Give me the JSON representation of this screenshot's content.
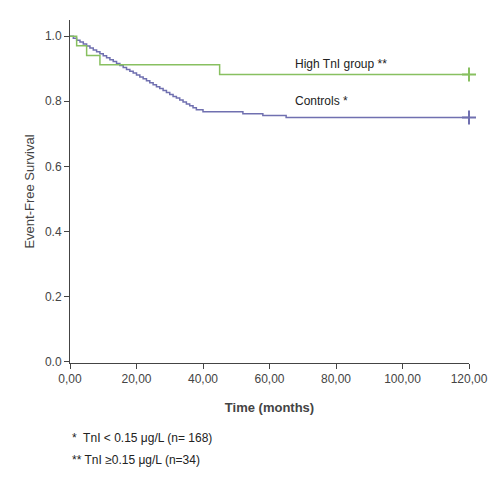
{
  "chart_data": {
    "type": "step",
    "x_label": "Time (months)",
    "y_label": "Event-Free Survival",
    "xlim": [
      0,
      120
    ],
    "ylim": [
      -0.005,
      1.05
    ],
    "xticks": [
      {
        "value": 0,
        "label": "0,00"
      },
      {
        "value": 20,
        "label": "20,00"
      },
      {
        "value": 40,
        "label": "40,00"
      },
      {
        "value": 60,
        "label": "60,00"
      },
      {
        "value": 80,
        "label": "80,00"
      },
      {
        "value": 100,
        "label": "100,00"
      },
      {
        "value": 120,
        "label": "120,00"
      }
    ],
    "yticks": [
      {
        "value": 0,
        "label": "0.0"
      },
      0.2,
      0.4,
      0.6,
      0.8,
      {
        "value": 1,
        "label": "1.0"
      }
    ],
    "grid": false,
    "footnotes": [
      "*  TnI < 0.15 μg/L (n= 168)",
      "** TnI ≥0.15 μg/L (n=34)"
    ],
    "series": [
      {
        "name": "Controls *",
        "color": "#7070b0",
        "marker": "plus",
        "x": [
          0,
          1,
          2,
          3,
          4,
          5,
          6,
          7,
          8,
          9,
          10,
          11,
          12,
          13,
          14,
          15,
          16,
          17,
          18,
          19,
          20,
          21,
          22,
          23,
          24,
          25,
          26,
          27,
          28,
          29,
          30,
          31,
          32,
          33,
          34,
          35,
          36,
          37,
          38,
          39,
          40,
          41,
          42,
          43,
          44,
          45,
          46,
          47,
          48,
          49,
          50,
          52,
          54,
          56,
          58,
          60,
          65,
          70,
          75,
          80,
          85,
          90,
          95,
          100,
          105,
          110,
          115,
          120
        ],
        "values": [
          1.0,
          0.994,
          0.988,
          0.982,
          0.976,
          0.97,
          0.964,
          0.958,
          0.952,
          0.946,
          0.94,
          0.934,
          0.928,
          0.922,
          0.916,
          0.91,
          0.904,
          0.898,
          0.892,
          0.887,
          0.881,
          0.875,
          0.869,
          0.863,
          0.857,
          0.851,
          0.845,
          0.839,
          0.833,
          0.827,
          0.821,
          0.815,
          0.81,
          0.804,
          0.798,
          0.792,
          0.786,
          0.78,
          0.774,
          0.774,
          0.768,
          0.768,
          0.768,
          0.768,
          0.768,
          0.768,
          0.768,
          0.768,
          0.768,
          0.768,
          0.768,
          0.762,
          0.762,
          0.762,
          0.756,
          0.756,
          0.75,
          0.75,
          0.75,
          0.75,
          0.75,
          0.75,
          0.75,
          0.75,
          0.75,
          0.75,
          0.75,
          0.75
        ],
        "censor_x": [
          120
        ],
        "censor_y": [
          0.75
        ],
        "label_x": 67,
        "label_y": 0.8
      },
      {
        "name": "High TnI group **",
        "color": "#88c060",
        "marker": "plus",
        "x": [
          0,
          2,
          3,
          5,
          7,
          9,
          11,
          45,
          46,
          120
        ],
        "values": [
          1.0,
          0.971,
          0.971,
          0.941,
          0.941,
          0.912,
          0.912,
          0.882,
          0.882,
          0.882
        ],
        "censor_x": [
          120
        ],
        "censor_y": [
          0.882
        ],
        "label_x": 67,
        "label_y": 0.915
      }
    ]
  }
}
